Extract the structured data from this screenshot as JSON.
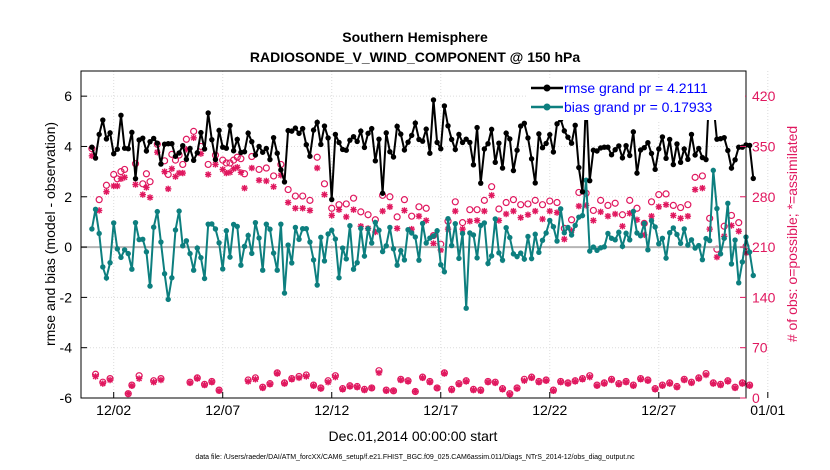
{
  "colors": {
    "rmse": "#000000",
    "bias": "#0d7f7f",
    "obs": "#e0185f",
    "zero": "#b5b5b5",
    "legend_text": "#0000ff"
  },
  "chart_data": {
    "type": "line",
    "title": "Southern Hemisphere",
    "subtitle": "RADIOSONDE_V_WIND_COMPONENT @ 150 hPa",
    "xlabel": "Dec.01,2014 00:00:00 start",
    "ylabel": "rmse and bias (model - observation)",
    "y2label": "# of obs: o=possible; *=assimilated",
    "footer": "data file: /Users/raeder/DAI/ATM_forcXX/CAM6_setup/f.e21.FHIST_BGC.f09_025.CAM6assim.011/Diags_NTrS_2014-12/obs_diag_output.nc",
    "xlim": [
      0.5,
      31.0
    ],
    "ylim": [
      -6,
      7
    ],
    "y2lim": [
      0,
      455
    ],
    "x_ticks": [
      {
        "v": 2,
        "label": "12/02"
      },
      {
        "v": 7,
        "label": "12/07"
      },
      {
        "v": 12,
        "label": "12/12"
      },
      {
        "v": 17,
        "label": "12/17"
      },
      {
        "v": 22,
        "label": "12/22"
      },
      {
        "v": 27,
        "label": "12/27"
      },
      {
        "v": 32,
        "label": "01/01"
      }
    ],
    "y_ticks": [
      -6,
      -4,
      -2,
      0,
      2,
      4,
      6
    ],
    "y2_ticks": [
      0,
      70,
      140,
      210,
      280,
      350,
      420
    ],
    "legend": [
      {
        "series": "rmse",
        "label": "rmse grand pr = 4.2111"
      },
      {
        "series": "bias",
        "label": "bias grand pr = 0.17933"
      }
    ],
    "series": [
      {
        "name": "rmse",
        "values": [
          3.97,
          3.54,
          4.48,
          5.05,
          4.3,
          4.54,
          3.71,
          3.89,
          5.24,
          3.93,
          3.91,
          4.56,
          2.72,
          4.26,
          4.33,
          3.82,
          4.19,
          4.32,
          4.13,
          3.3,
          4.09,
          4.11,
          4.11,
          3.61,
          3.74,
          4.03,
          3.49,
          3.92,
          3.45,
          3.75,
          4.55,
          3.9,
          5.33,
          4.27,
          3.48,
          4.64,
          3.97,
          3.93,
          4.83,
          3.83,
          4.28,
          3.76,
          3.79,
          4.53,
          4.19,
          3.66,
          4.0,
          3.77,
          3.92,
          3.48,
          4.35,
          3.73,
          3.07,
          2.59,
          4.63,
          4.61,
          4.73,
          4.52,
          4.71,
          4.07,
          3.61,
          4.65,
          4.96,
          4.08,
          4.81,
          4.34,
          1.89,
          4.48,
          4.16,
          3.88,
          3.85,
          4.25,
          4.39,
          4.2,
          4.61,
          3.96,
          4.52,
          4.71,
          3.43,
          4.29,
          2.14,
          4.54,
          3.79,
          3.58,
          4.8,
          4.49,
          3.86,
          4.17,
          4.44,
          4.93,
          4.28,
          4.21,
          4.69,
          3.73,
          5.85,
          4.16,
          3.91,
          5.61,
          4.82,
          4.28,
          3.88,
          4.48,
          4.16,
          4.29,
          4.16,
          3.27,
          4.75,
          2.54,
          3.9,
          4.11,
          4.68,
          3.37,
          4.13,
          3.14,
          4.53,
          4.3,
          3.04,
          3.85,
          4.81,
          4.92,
          4.34,
          3.51,
          2.55,
          4.5,
          3.95,
          4.12,
          4.47,
          3.78,
          4.9,
          5.07,
          4.62,
          4.37,
          4.13,
          4.84,
          3.16,
          2.2,
          5.97,
          2.64,
          3.85,
          3.82,
          3.94,
          3.97,
          3.97,
          3.67,
          3.87,
          4.02,
          3.55,
          4.03,
          3.64,
          4.58,
          2.94,
          3.86,
          3.95,
          4.15,
          3.72,
          3.09,
          3.9,
          4.38,
          3.53,
          4.28,
          3.28,
          4.1,
          3.37,
          3.9,
          3.49,
          4.48,
          3.66,
          3.92,
          3.56,
          3.48,
          6.5,
          5.73,
          4.29,
          4.31,
          4.35,
          3.84,
          3.14,
          3.47,
          3.97,
          3.97,
          4.06,
          4.04,
          2.73
        ]
      },
      {
        "name": "bias",
        "values": [
          0.72,
          1.5,
          0.54,
          -0.79,
          -1.23,
          -0.62,
          0.96,
          -0.07,
          -0.41,
          -0.11,
          -0.26,
          -0.88,
          0.97,
          0.3,
          0.31,
          -0.19,
          -1.55,
          0.79,
          1.41,
          0.2,
          -1.06,
          -2.08,
          -1.22,
          0.68,
          1.43,
          0.05,
          0.25,
          -0.26,
          -0.92,
          -0.04,
          -0.42,
          -1.25,
          0.91,
          0.92,
          0.72,
          0.17,
          -0.87,
          0.65,
          -0.4,
          0.9,
          0.82,
          -0.72,
          0.03,
          0.46,
          -0.25,
          0.97,
          0.36,
          -0.92,
          0.91,
          0.71,
          -0.24,
          -0.92,
          0.91,
          -1.83,
          0.08,
          -0.63,
          0.78,
          0.31,
          0.73,
          0.73,
          0.2,
          -0.51,
          -1.51,
          0.39,
          -0.55,
          0.52,
          0.67,
          0.32,
          -1.22,
          -0.04,
          -0.47,
          0.85,
          -0.88,
          -0.62,
          0.74,
          -0.36,
          0.73,
          0.16,
          0.98,
          0.67,
          -0.18,
          0.05,
          0.78,
          -0.07,
          -0.72,
          -0.14,
          -0.51,
          0.69,
          0.56,
          0.4,
          -0.52,
          0.94,
          0.16,
          0.36,
          0.44,
          0.65,
          -0.7,
          -0.98,
          1.13,
          0.06,
          0.93,
          -0.45,
          0.54,
          -2.43,
          0.56,
          0.48,
          -0.43,
          0.86,
          0.96,
          -0.65,
          -0.35,
          1.12,
          -0.23,
          -0.52,
          0.77,
          0.38,
          -0.27,
          -0.38,
          -0.24,
          -0.48,
          0.42,
          -0.46,
          0.51,
          -0.21,
          0.27,
          0.56,
          1.06,
          0.81,
          0.24,
          1.52,
          0.57,
          0.78,
          0.48,
          0.86,
          1.19,
          1.25,
          2.66,
          -0.16,
          0.0,
          -0.13,
          -0.03,
          0.01,
          0.54,
          0.35,
          0.29,
          0.59,
          0.03,
          0.55,
          0.29,
          1.42,
          0.56,
          0.45,
          0.94,
          -0.11,
          1.05,
          0.8,
          0.13,
          0.35,
          -0.44,
          0.57,
          0.76,
          0.5,
          0.15,
          0.72,
          0.08,
          0.29,
          -0.04,
          0.06,
          -0.5,
          0.34,
          0.26,
          3.05,
          1.53,
          -0.27,
          0.35,
          1.74,
          -0.67,
          0.28,
          -1.42,
          -0.59,
          0.4,
          -0.2,
          -1.13
        ]
      },
      {
        "name": "obs_possible",
        "values": [
          347,
          33,
          276,
          22,
          296,
          27,
          311,
          305,
          315,
          318,
          6,
          18,
          326,
          31,
          298,
          312,
          301,
          24,
          353,
          27,
          330,
          311,
          339,
          331,
          338,
          325,
          360,
          22,
          371,
          28,
          350,
          19,
          325,
          23,
          338,
          11,
          331,
          327,
          327,
          331,
          335,
          333,
          312,
          25,
          336,
          28,
          318,
          15,
          320,
          20,
          309,
          35,
          325,
          21,
          290,
          27,
          281,
          30,
          281,
          32,
          275,
          18,
          335,
          14,
          298,
          24,
          264,
          31,
          269,
          13,
          270,
          17,
          278,
          16,
          259,
          12,
          255,
          14,
          248,
          38,
          282,
          11,
          280,
          10,
          252,
          26,
          276,
          24,
          253,
          9,
          266,
          29,
          264,
          23,
          226,
          14,
          214,
          35,
          246,
          12,
          273,
          20,
          244,
          24,
          262,
          12,
          262,
          11,
          275,
          23,
          294,
          22,
          263,
          13,
          272,
          6,
          276,
          14,
          269,
          26,
          270,
          29,
          275,
          23,
          269,
          25,
          274,
          11,
          272,
          23,
          236,
          21,
          248,
          24,
          286,
          27,
          285,
          31,
          261,
          18,
          275,
          21,
          268,
          26,
          271,
          20,
          255,
          23,
          275,
          18,
          264,
          27,
          243,
          25,
          273,
          13,
          283,
          18,
          284,
          21,
          268,
          16,
          265,
          26,
          269,
          22,
          307,
          28,
          309,
          34,
          250,
          21,
          207,
          19,
          239,
          24,
          254,
          15,
          244,
          21,
          211,
          18
        ]
      },
      {
        "name": "obs_assimilated",
        "values": [
          337,
          30,
          261,
          20,
          287,
          25,
          295,
          295,
          305,
          307,
          6,
          17,
          297,
          27,
          283,
          293,
          279,
          22,
          342,
          25,
          315,
          291,
          319,
          308,
          313,
          313,
          346,
          21,
          362,
          27,
          340,
          18,
          311,
          22,
          325,
          10,
          318,
          313,
          314,
          319,
          321,
          314,
          292,
          23,
          320,
          26,
          303,
          14,
          302,
          19,
          294,
          34,
          310,
          20,
          272,
          26,
          264,
          28,
          264,
          30,
          261,
          17,
          320,
          13,
          283,
          22,
          254,
          29,
          262,
          12,
          252,
          16,
          262,
          15,
          239,
          11,
          236,
          14,
          231,
          35,
          260,
          10,
          266,
          10,
          236,
          25,
          261,
          23,
          235,
          9,
          253,
          28,
          247,
          22,
          215,
          14,
          206,
          34,
          235,
          11,
          260,
          19,
          235,
          23,
          246,
          11,
          247,
          10,
          260,
          22,
          282,
          21,
          247,
          12,
          256,
          5,
          260,
          13,
          251,
          24,
          255,
          28,
          260,
          22,
          249,
          24,
          260,
          10,
          258,
          22,
          221,
          20,
          233,
          23,
          267,
          26,
          268,
          29,
          247,
          17,
          259,
          20,
          253,
          25,
          256,
          19,
          239,
          22,
          257,
          17,
          248,
          26,
          227,
          24,
          253,
          12,
          266,
          17,
          269,
          20,
          254,
          15,
          250,
          25,
          253,
          21,
          290,
          27,
          292,
          32,
          235,
          20,
          196,
          18,
          225,
          23,
          240,
          14,
          232,
          20,
          202,
          17
        ]
      }
    ]
  }
}
